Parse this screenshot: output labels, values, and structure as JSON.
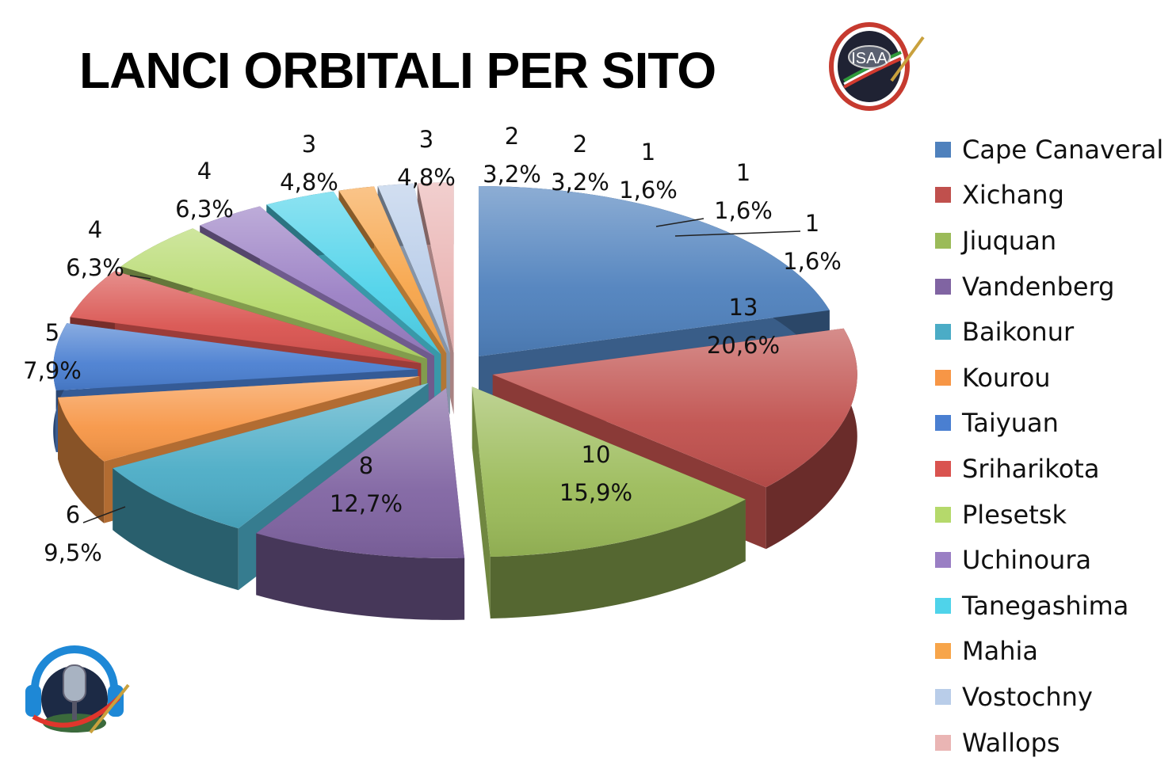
{
  "chart_data": {
    "type": "pie",
    "title": "LANCI ORBITALI PER SITO",
    "legend_position": "right",
    "slices": [
      {
        "name": "Cape Canaveral",
        "value": 13,
        "percent": "20,6%",
        "color": "#4f81bd"
      },
      {
        "name": "Xichang",
        "value": 10,
        "percent": "15,9%",
        "color": "#c0504d"
      },
      {
        "name": "Jiuquan",
        "value": 8,
        "percent": "12,7%",
        "color": "#9bbb59"
      },
      {
        "name": "Vandenberg",
        "value": 6,
        "percent": "9,5%",
        "color": "#8064a2"
      },
      {
        "name": "Baikonur",
        "value": 5,
        "percent": "7,9%",
        "color": "#4bacc6"
      },
      {
        "name": "Kourou",
        "value": 4,
        "percent": "6,3%",
        "color": "#f79646"
      },
      {
        "name": "Taiyuan",
        "value": 4,
        "percent": "6,3%",
        "color": "#4a7fd1"
      },
      {
        "name": "Sriharikota",
        "value": 3,
        "percent": "4,8%",
        "color": "#d9534f"
      },
      {
        "name": "Plesetsk",
        "value": 3,
        "percent": "4,8%",
        "color": "#b5d96b"
      },
      {
        "name": "Uchinoura",
        "value": 2,
        "percent": "3,2%",
        "color": "#9a7fc4"
      },
      {
        "name": "Tanegashima",
        "value": 2,
        "percent": "3,2%",
        "color": "#4fd3ea"
      },
      {
        "name": "Mahia",
        "value": 1,
        "percent": "1,6%",
        "color": "#f7a54a"
      },
      {
        "name": "Vostochny",
        "value": 1,
        "percent": "1,6%",
        "color": "#b9cde9"
      },
      {
        "name": "Wallops",
        "value": 1,
        "percent": "1,6%",
        "color": "#eab5b4"
      }
    ]
  },
  "logos": {
    "isaa": {
      "text": "ISAA"
    }
  }
}
